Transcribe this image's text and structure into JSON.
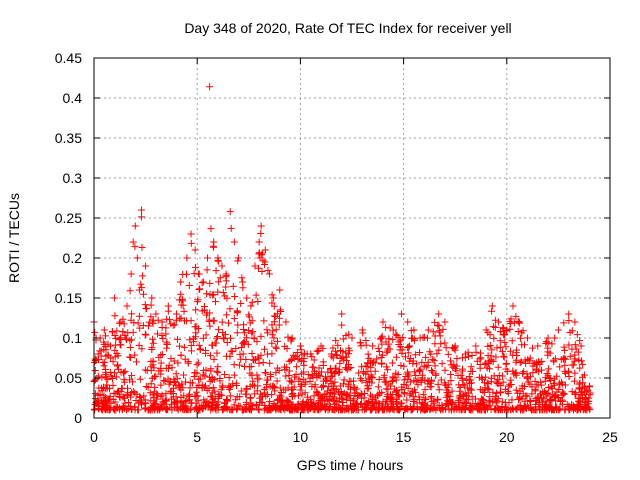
{
  "chart_data": {
    "type": "scatter",
    "title": "Day 348 of 2020, Rate Of TEC Index for receiver yell",
    "xlabel": "GPS time / hours",
    "ylabel": "ROTI / TECUs",
    "xlim": [
      0,
      25
    ],
    "ylim": [
      0,
      0.45
    ],
    "xticks": [
      0,
      5,
      10,
      15,
      20,
      25
    ],
    "xtick_labels": [
      "0",
      "5",
      "10",
      "15",
      "20",
      "25"
    ],
    "yticks": [
      0,
      0.05,
      0.1,
      0.15,
      0.2,
      0.25,
      0.3,
      0.35,
      0.4,
      0.45
    ],
    "ytick_labels": [
      "0",
      "0.05",
      "0.1",
      "0.15",
      "0.2",
      "0.25",
      "0.3",
      "0.35",
      "0.4",
      "0.45"
    ],
    "grid": true,
    "marker": "+",
    "marker_color": "#ff0000",
    "series": [
      {
        "name": "ROTI",
        "points": [
          [
            0.0,
            0.12
          ],
          [
            0.1,
            0.1
          ],
          [
            0.2,
            0.08
          ],
          [
            0.3,
            0.1
          ],
          [
            0.5,
            0.11
          ],
          [
            0.8,
            0.09
          ],
          [
            1.0,
            0.15
          ],
          [
            1.3,
            0.12
          ],
          [
            1.6,
            0.14
          ],
          [
            1.8,
            0.18
          ],
          [
            1.9,
            0.22
          ],
          [
            2.0,
            0.24
          ],
          [
            2.1,
            0.2
          ],
          [
            2.2,
            0.16
          ],
          [
            2.3,
            0.26
          ],
          [
            2.5,
            0.19
          ],
          [
            2.8,
            0.15
          ],
          [
            3.0,
            0.13
          ],
          [
            3.3,
            0.12
          ],
          [
            3.6,
            0.14
          ],
          [
            4.0,
            0.13
          ],
          [
            4.2,
            0.17
          ],
          [
            4.5,
            0.2
          ],
          [
            4.7,
            0.23
          ],
          [
            4.9,
            0.21
          ],
          [
            5.1,
            0.18
          ],
          [
            5.3,
            0.17
          ],
          [
            5.5,
            0.2
          ],
          [
            5.6,
            0.414
          ],
          [
            5.8,
            0.22
          ],
          [
            6.0,
            0.2
          ],
          [
            6.2,
            0.19
          ],
          [
            6.4,
            0.18
          ],
          [
            6.6,
            0.258
          ],
          [
            6.8,
            0.22
          ],
          [
            7.0,
            0.2
          ],
          [
            7.2,
            0.17
          ],
          [
            7.4,
            0.15
          ],
          [
            7.6,
            0.14
          ],
          [
            7.8,
            0.19
          ],
          [
            8.0,
            0.22
          ],
          [
            8.1,
            0.24
          ],
          [
            8.3,
            0.21
          ],
          [
            8.5,
            0.18
          ],
          [
            8.7,
            0.15
          ],
          [
            9.0,
            0.16
          ],
          [
            9.3,
            0.12
          ],
          [
            9.6,
            0.1
          ],
          [
            10.0,
            0.09
          ],
          [
            10.5,
            0.08
          ],
          [
            11.0,
            0.09
          ],
          [
            11.5,
            0.08
          ],
          [
            12.0,
            0.13
          ],
          [
            12.5,
            0.1
          ],
          [
            13.0,
            0.11
          ],
          [
            13.5,
            0.09
          ],
          [
            14.0,
            0.12
          ],
          [
            14.5,
            0.11
          ],
          [
            14.9,
            0.13
          ],
          [
            15.2,
            0.12
          ],
          [
            15.5,
            0.11
          ],
          [
            15.8,
            0.1
          ],
          [
            16.2,
            0.11
          ],
          [
            16.7,
            0.13
          ],
          [
            17.0,
            0.12
          ],
          [
            17.5,
            0.09
          ],
          [
            18.0,
            0.08
          ],
          [
            18.5,
            0.09
          ],
          [
            19.0,
            0.11
          ],
          [
            19.3,
            0.14
          ],
          [
            19.6,
            0.12
          ],
          [
            20.0,
            0.11
          ],
          [
            20.3,
            0.14
          ],
          [
            20.6,
            0.12
          ],
          [
            21.0,
            0.1
          ],
          [
            21.5,
            0.09
          ],
          [
            22.0,
            0.1
          ],
          [
            22.5,
            0.11
          ],
          [
            23.0,
            0.13
          ],
          [
            23.3,
            0.12
          ],
          [
            23.6,
            0.09
          ],
          [
            24.0,
            0.04
          ]
        ]
      }
    ]
  }
}
